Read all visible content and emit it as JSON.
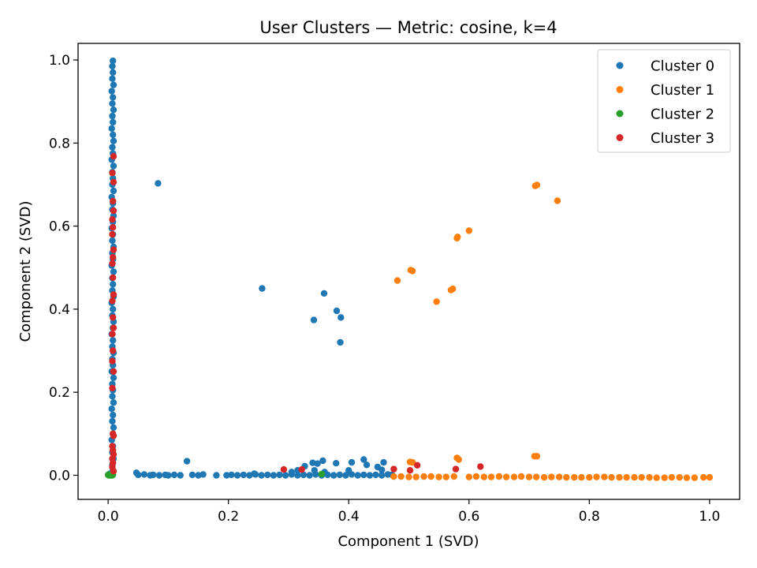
{
  "chart_data": {
    "type": "scatter",
    "title": "User Clusters — Metric: cosine, k=4",
    "xlabel": "Component 1 (SVD)",
    "ylabel": "Component 2 (SVD)",
    "xlim": [
      -0.05,
      1.05
    ],
    "ylim": [
      -0.058,
      1.04
    ],
    "xticks": [
      0.0,
      0.2,
      0.4,
      0.6,
      0.8,
      1.0
    ],
    "yticks": [
      0.0,
      0.2,
      0.4,
      0.6,
      0.8,
      1.0
    ],
    "xtick_labels": [
      "0.0",
      "0.2",
      "0.4",
      "0.6",
      "0.8",
      "1.0"
    ],
    "ytick_labels": [
      "0.0",
      "0.2",
      "0.4",
      "0.6",
      "0.8",
      "1.0"
    ],
    "grid": false,
    "legend_position": "top-right",
    "series": [
      {
        "name": "Cluster 0",
        "color": "#1f77b4",
        "points": [
          [
            0.008,
            0.998
          ],
          [
            0.007,
            0.985
          ],
          [
            0.008,
            0.97
          ],
          [
            0.007,
            0.955
          ],
          [
            0.009,
            0.94
          ],
          [
            0.006,
            0.925
          ],
          [
            0.008,
            0.91
          ],
          [
            0.007,
            0.895
          ],
          [
            0.009,
            0.88
          ],
          [
            0.007,
            0.865
          ],
          [
            0.008,
            0.85
          ],
          [
            0.006,
            0.835
          ],
          [
            0.008,
            0.82
          ],
          [
            0.009,
            0.805
          ],
          [
            0.007,
            0.79
          ],
          [
            0.008,
            0.775
          ],
          [
            0.006,
            0.76
          ],
          [
            0.009,
            0.745
          ],
          [
            0.007,
            0.73
          ],
          [
            0.008,
            0.715
          ],
          [
            0.007,
            0.7
          ],
          [
            0.009,
            0.685
          ],
          [
            0.006,
            0.67
          ],
          [
            0.008,
            0.655
          ],
          [
            0.007,
            0.64
          ],
          [
            0.009,
            0.625
          ],
          [
            0.008,
            0.61
          ],
          [
            0.006,
            0.595
          ],
          [
            0.008,
            0.58
          ],
          [
            0.007,
            0.565
          ],
          [
            0.009,
            0.55
          ],
          [
            0.007,
            0.535
          ],
          [
            0.008,
            0.52
          ],
          [
            0.006,
            0.505
          ],
          [
            0.009,
            0.49
          ],
          [
            0.007,
            0.475
          ],
          [
            0.008,
            0.46
          ],
          [
            0.007,
            0.445
          ],
          [
            0.009,
            0.43
          ],
          [
            0.006,
            0.415
          ],
          [
            0.008,
            0.4
          ],
          [
            0.007,
            0.385
          ],
          [
            0.009,
            0.37
          ],
          [
            0.008,
            0.355
          ],
          [
            0.006,
            0.34
          ],
          [
            0.008,
            0.325
          ],
          [
            0.007,
            0.31
          ],
          [
            0.009,
            0.295
          ],
          [
            0.007,
            0.28
          ],
          [
            0.008,
            0.265
          ],
          [
            0.006,
            0.25
          ],
          [
            0.009,
            0.235
          ],
          [
            0.007,
            0.22
          ],
          [
            0.008,
            0.205
          ],
          [
            0.007,
            0.19
          ],
          [
            0.009,
            0.175
          ],
          [
            0.006,
            0.16
          ],
          [
            0.008,
            0.145
          ],
          [
            0.007,
            0.13
          ],
          [
            0.009,
            0.115
          ],
          [
            0.008,
            0.1
          ],
          [
            0.006,
            0.085
          ],
          [
            0.008,
            0.07
          ],
          [
            0.007,
            0.055
          ],
          [
            0.009,
            0.04
          ],
          [
            0.007,
            0.025
          ],
          [
            0.008,
            0.012
          ],
          [
            0.003,
            0.004
          ],
          [
            0.001,
            0.001
          ],
          [
            0.004,
            0.002
          ],
          [
            0.083,
            0.703
          ],
          [
            0.256,
            0.45
          ],
          [
            0.359,
            0.438
          ],
          [
            0.342,
            0.374
          ],
          [
            0.38,
            0.396
          ],
          [
            0.387,
            0.38
          ],
          [
            0.386,
            0.32
          ],
          [
            0.131,
            0.034
          ],
          [
            0.047,
            0.006
          ],
          [
            0.05,
            0.001
          ],
          [
            0.06,
            0.002
          ],
          [
            0.07,
            0.0
          ],
          [
            0.075,
            0.001
          ],
          [
            0.085,
            0.0
          ],
          [
            0.095,
            0.001
          ],
          [
            0.1,
            0.0
          ],
          [
            0.11,
            0.001
          ],
          [
            0.12,
            0.0
          ],
          [
            0.14,
            0.001
          ],
          [
            0.15,
            0.0
          ],
          [
            0.158,
            0.002
          ],
          [
            0.197,
            0.0
          ],
          [
            0.205,
            0.001
          ],
          [
            0.215,
            0.0
          ],
          [
            0.225,
            0.001
          ],
          [
            0.235,
            0.0
          ],
          [
            0.245,
            0.002
          ],
          [
            0.255,
            0.0
          ],
          [
            0.265,
            0.001
          ],
          [
            0.275,
            0.0
          ],
          [
            0.285,
            0.001
          ],
          [
            0.295,
            0.0
          ],
          [
            0.305,
            0.002
          ],
          [
            0.315,
            0.0
          ],
          [
            0.325,
            0.001
          ],
          [
            0.335,
            0.0
          ],
          [
            0.345,
            0.002
          ],
          [
            0.355,
            0.0
          ],
          [
            0.365,
            0.001
          ],
          [
            0.375,
            0.0
          ],
          [
            0.385,
            0.001
          ],
          [
            0.395,
            0.0
          ],
          [
            0.405,
            0.002
          ],
          [
            0.415,
            0.0
          ],
          [
            0.425,
            0.001
          ],
          [
            0.435,
            0.0
          ],
          [
            0.445,
            0.001
          ],
          [
            0.455,
            0.0
          ],
          [
            0.465,
            0.002
          ],
          [
            0.472,
            0.001
          ],
          [
            0.327,
            0.022
          ],
          [
            0.34,
            0.03
          ],
          [
            0.348,
            0.028
          ],
          [
            0.357,
            0.035
          ],
          [
            0.343,
            0.012
          ],
          [
            0.36,
            0.008
          ],
          [
            0.379,
            0.029
          ],
          [
            0.405,
            0.031
          ],
          [
            0.425,
            0.038
          ],
          [
            0.43,
            0.025
          ],
          [
            0.448,
            0.02
          ],
          [
            0.455,
            0.013
          ],
          [
            0.458,
            0.031
          ],
          [
            0.4,
            0.012
          ],
          [
            0.315,
            0.012
          ],
          [
            0.305,
            0.008
          ],
          [
            0.243,
            0.004
          ],
          [
            0.18,
            0.0
          ]
        ]
      },
      {
        "name": "Cluster 1",
        "color": "#ff7f0e",
        "points": [
          [
            0.71,
            0.697
          ],
          [
            0.713,
            0.699
          ],
          [
            0.747,
            0.661
          ],
          [
            0.6,
            0.589
          ],
          [
            0.581,
            0.574
          ],
          [
            0.58,
            0.571
          ],
          [
            0.503,
            0.494
          ],
          [
            0.506,
            0.492
          ],
          [
            0.481,
            0.469
          ],
          [
            0.573,
            0.449
          ],
          [
            0.57,
            0.446
          ],
          [
            0.546,
            0.418
          ],
          [
            0.502,
            0.032
          ],
          [
            0.506,
            0.031
          ],
          [
            0.58,
            0.042
          ],
          [
            0.583,
            0.038
          ],
          [
            0.709,
            0.046
          ],
          [
            0.713,
            0.046
          ],
          [
            0.475,
            -0.003
          ],
          [
            0.5,
            -0.004
          ],
          [
            0.525,
            -0.003
          ],
          [
            0.55,
            -0.004
          ],
          [
            0.575,
            -0.003
          ],
          [
            0.6,
            -0.004
          ],
          [
            0.625,
            -0.004
          ],
          [
            0.65,
            -0.003
          ],
          [
            0.675,
            -0.004
          ],
          [
            0.7,
            -0.004
          ],
          [
            0.725,
            -0.005
          ],
          [
            0.75,
            -0.004
          ],
          [
            0.775,
            -0.005
          ],
          [
            0.8,
            -0.005
          ],
          [
            0.825,
            -0.004
          ],
          [
            0.85,
            -0.005
          ],
          [
            0.875,
            -0.005
          ],
          [
            0.9,
            -0.005
          ],
          [
            0.925,
            -0.006
          ],
          [
            0.95,
            -0.005
          ],
          [
            0.975,
            -0.006
          ],
          [
            1.0,
            -0.005
          ],
          [
            0.487,
            -0.003
          ],
          [
            0.512,
            -0.004
          ],
          [
            0.537,
            -0.003
          ],
          [
            0.562,
            -0.004
          ],
          [
            0.612,
            -0.003
          ],
          [
            0.637,
            -0.004
          ],
          [
            0.662,
            -0.004
          ],
          [
            0.687,
            -0.003
          ],
          [
            0.712,
            -0.004
          ],
          [
            0.737,
            -0.004
          ],
          [
            0.762,
            -0.005
          ],
          [
            0.787,
            -0.005
          ],
          [
            0.812,
            -0.004
          ],
          [
            0.837,
            -0.005
          ],
          [
            0.862,
            -0.005
          ],
          [
            0.887,
            -0.005
          ],
          [
            0.912,
            -0.006
          ],
          [
            0.937,
            -0.005
          ],
          [
            0.962,
            -0.006
          ],
          [
            0.99,
            -0.005
          ]
        ]
      },
      {
        "name": "Cluster 2",
        "color": "#2ca02c",
        "points": [
          [
            0.001,
            0.0
          ],
          [
            0.003,
            0.001
          ],
          [
            0.002,
            0.0
          ],
          [
            0.005,
            0.0
          ],
          [
            0.006,
            0.001
          ],
          [
            0.004,
            0.0
          ],
          [
            0.0,
            0.001
          ],
          [
            0.007,
            0.0
          ],
          [
            0.008,
            0.001
          ],
          [
            0.002,
            0.002
          ],
          [
            0.355,
            0.003
          ]
        ]
      },
      {
        "name": "Cluster 3",
        "color": "#d62728",
        "points": [
          [
            0.009,
            0.768
          ],
          [
            0.007,
            0.728
          ],
          [
            0.009,
            0.706
          ],
          [
            0.008,
            0.66
          ],
          [
            0.009,
            0.637
          ],
          [
            0.007,
            0.616
          ],
          [
            0.008,
            0.597
          ],
          [
            0.007,
            0.58
          ],
          [
            0.009,
            0.543
          ],
          [
            0.008,
            0.525
          ],
          [
            0.007,
            0.51
          ],
          [
            0.008,
            0.476
          ],
          [
            0.009,
            0.435
          ],
          [
            0.007,
            0.42
          ],
          [
            0.008,
            0.38
          ],
          [
            0.009,
            0.355
          ],
          [
            0.007,
            0.34
          ],
          [
            0.008,
            0.3
          ],
          [
            0.007,
            0.275
          ],
          [
            0.009,
            0.25
          ],
          [
            0.007,
            0.21
          ],
          [
            0.008,
            0.1
          ],
          [
            0.009,
            0.095
          ],
          [
            0.007,
            0.07
          ],
          [
            0.008,
            0.06
          ],
          [
            0.009,
            0.05
          ],
          [
            0.007,
            0.04
          ],
          [
            0.008,
            0.03
          ],
          [
            0.007,
            0.02
          ],
          [
            0.009,
            0.01
          ],
          [
            0.292,
            0.014
          ],
          [
            0.322,
            0.014
          ],
          [
            0.475,
            0.015
          ],
          [
            0.502,
            0.012
          ],
          [
            0.514,
            0.024
          ],
          [
            0.578,
            0.015
          ],
          [
            0.619,
            0.021
          ]
        ]
      }
    ]
  }
}
